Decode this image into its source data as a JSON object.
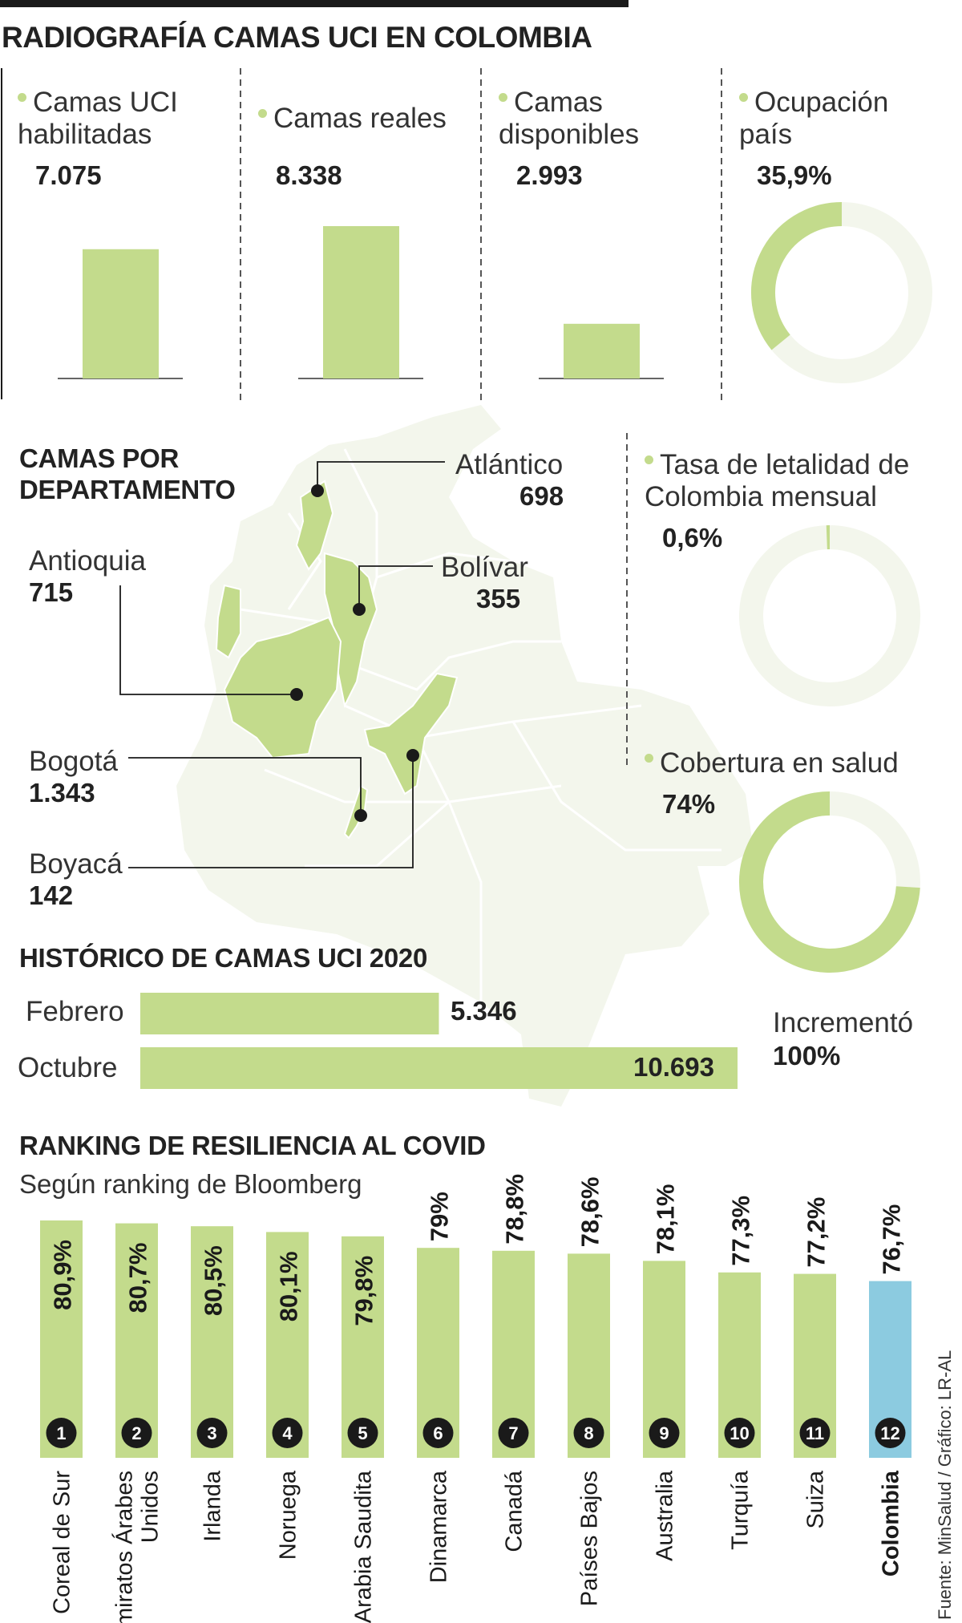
{
  "title": "RADIOGRAFÍA CAMAS UCI EN COLOMBIA",
  "colors": {
    "green": "#c3db8c",
    "light": "#f3f6ec",
    "blue": "#8ccbe0",
    "dark": "#1a1a1a"
  },
  "stats": {
    "uci_label": "Camas UCI habilitadas",
    "uci_value": "7.075",
    "reales_label": "Camas reales",
    "reales_value": "8.338",
    "disp_label": "Camas disponibles",
    "disp_value": "2.993",
    "ocup_label": "Ocupación país",
    "ocup_value": "35,9%"
  },
  "departamentos": {
    "title": "CAMAS POR DEPARTAMENTO",
    "atlantico_name": "Atlántico",
    "atlantico_value": "698",
    "bolivar_name": "Bolívar",
    "bolivar_value": "355",
    "antioquia_name": "Antioquia",
    "antioquia_value": "715",
    "bogota_name": "Bogotá",
    "bogota_value": "1.343",
    "boyaca_name": "Boyacá",
    "boyaca_value": "142"
  },
  "indicadores": {
    "letalidad_label": "Tasa de letalidad de Colombia mensual",
    "letalidad_value": "0,6%",
    "cobertura_label": "Cobertura en salud",
    "cobertura_value": "74%"
  },
  "historico": {
    "title": "HISTÓRICO DE CAMAS UCI 2020",
    "febrero_label": "Febrero",
    "febrero_value": "5.346",
    "octubre_label": "Octubre",
    "octubre_value": "10.693",
    "incremento_label": "Incrementó",
    "incremento_value": "100%"
  },
  "ranking": {
    "title": "RANKING DE RESILIENCIA AL COVID",
    "subtitle": "Según ranking de Bloomberg"
  },
  "source": "Fuente: MinSalud / Gráfico: LR-AL",
  "chart_data": [
    {
      "type": "bar",
      "categories": [
        "Camas UCI habilitadas",
        "Camas reales",
        "Camas disponibles"
      ],
      "values": [
        7075,
        8338,
        2993
      ]
    },
    {
      "type": "pie",
      "title": "Ocupación país",
      "slices": [
        {
          "label": "Ocupación país",
          "value": 35.9
        },
        {
          "label": "",
          "value": 64.1
        }
      ]
    },
    {
      "type": "pie",
      "title": "Tasa de letalidad de Colombia mensual",
      "slices": [
        {
          "label": "Tasa de letalidad",
          "value": 0.6
        },
        {
          "label": "",
          "value": 99.4
        }
      ]
    },
    {
      "type": "pie",
      "title": "Cobertura en salud",
      "slices": [
        {
          "label": "Cobertura en salud",
          "value": 74
        },
        {
          "label": "",
          "value": 26
        }
      ]
    },
    {
      "type": "bar",
      "title": "HISTÓRICO DE CAMAS UCI 2020",
      "categories": [
        "Febrero",
        "Octubre"
      ],
      "values": [
        5346,
        10693
      ]
    },
    {
      "type": "bar",
      "title": "RANKING DE RESILIENCIA AL COVID",
      "subtitle": "Según ranking de Bloomberg",
      "categories": [
        "Coreal de Sur",
        "Emiratos Árabes Unidos",
        "Irlanda",
        "Noruega",
        "Arabia Saudita",
        "Dinamarca",
        "Canadá",
        "Países Bajos",
        "Australia",
        "Turquía",
        "Suiza",
        "Colombia"
      ],
      "values": [
        80.9,
        80.7,
        80.5,
        80.1,
        79.8,
        79,
        78.8,
        78.6,
        78.1,
        77.3,
        77.2,
        76.7
      ],
      "labels": [
        "80,9%",
        "80,7%",
        "80,5%",
        "80,1%",
        "79,8%",
        "79%",
        "78,8%",
        "78,6%",
        "78,1%",
        "77,3%",
        "77,2%",
        "76,7%"
      ],
      "ranks": [
        "1",
        "2",
        "3",
        "4",
        "5",
        "6",
        "7",
        "8",
        "9",
        "10",
        "11",
        "12"
      ],
      "highlight": "Colombia"
    }
  ]
}
